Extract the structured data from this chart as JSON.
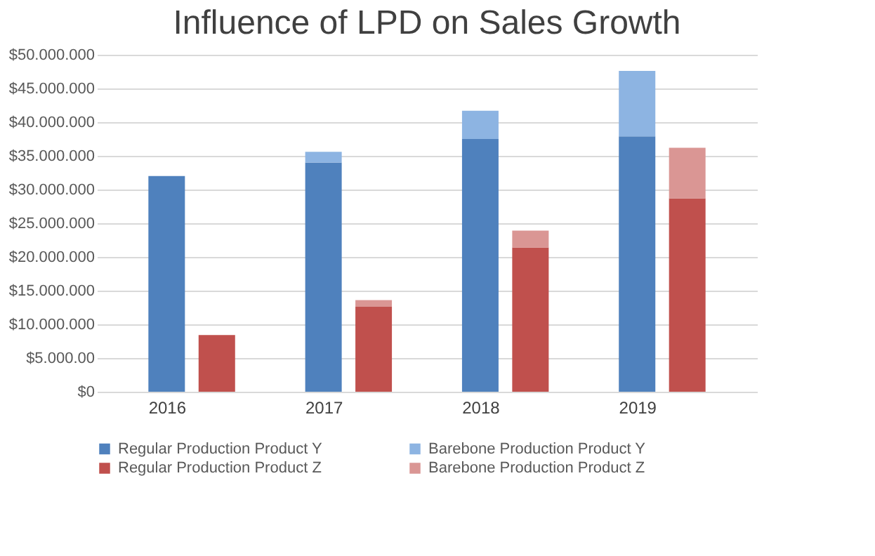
{
  "chart_data": {
    "type": "bar",
    "title": "Influence of LPD on Sales Growth",
    "stacked": true,
    "categories": [
      "2016",
      null,
      "2017",
      null,
      "2018",
      null,
      "2019",
      null
    ],
    "series": [
      {
        "name": "Regular Production Product Y",
        "color": "#4f81bd",
        "values": [
          32000000,
          null,
          34000000,
          null,
          37500000,
          null,
          37900000,
          null
        ]
      },
      {
        "name": "Barebone Production Product Y",
        "color": "#8db4e2",
        "values": [
          0,
          null,
          1600000,
          null,
          4200000,
          null,
          9700000,
          null
        ]
      },
      {
        "name": "Regular Production Product Z",
        "color": "#c0504d",
        "values": [
          null,
          8400000,
          null,
          12600000,
          null,
          21400000,
          null,
          28700000
        ]
      },
      {
        "name": "Barebone Production Product Z",
        "color": "#da9694",
        "values": [
          null,
          0,
          null,
          1000000,
          null,
          2500000,
          null,
          7500000
        ]
      }
    ],
    "ylim": [
      0,
      50000000
    ],
    "yticks": [
      {
        "value": 0,
        "label": "$0"
      },
      {
        "value": 5000000,
        "label": "$5.000.00"
      },
      {
        "value": 10000000,
        "label": "$10.000.000"
      },
      {
        "value": 15000000,
        "label": "$15.000.000"
      },
      {
        "value": 20000000,
        "label": "$20.000.000"
      },
      {
        "value": 25000000,
        "label": "$25.000.000"
      },
      {
        "value": 30000000,
        "label": "$30.000.000"
      },
      {
        "value": 35000000,
        "label": "$35.000.000"
      },
      {
        "value": 40000000,
        "label": "$40.000.000"
      },
      {
        "value": 45000000,
        "label": "$45.000.000"
      },
      {
        "value": 50000000,
        "label": "$50.000.000"
      }
    ],
    "grid": "y",
    "legend": "bottom"
  }
}
